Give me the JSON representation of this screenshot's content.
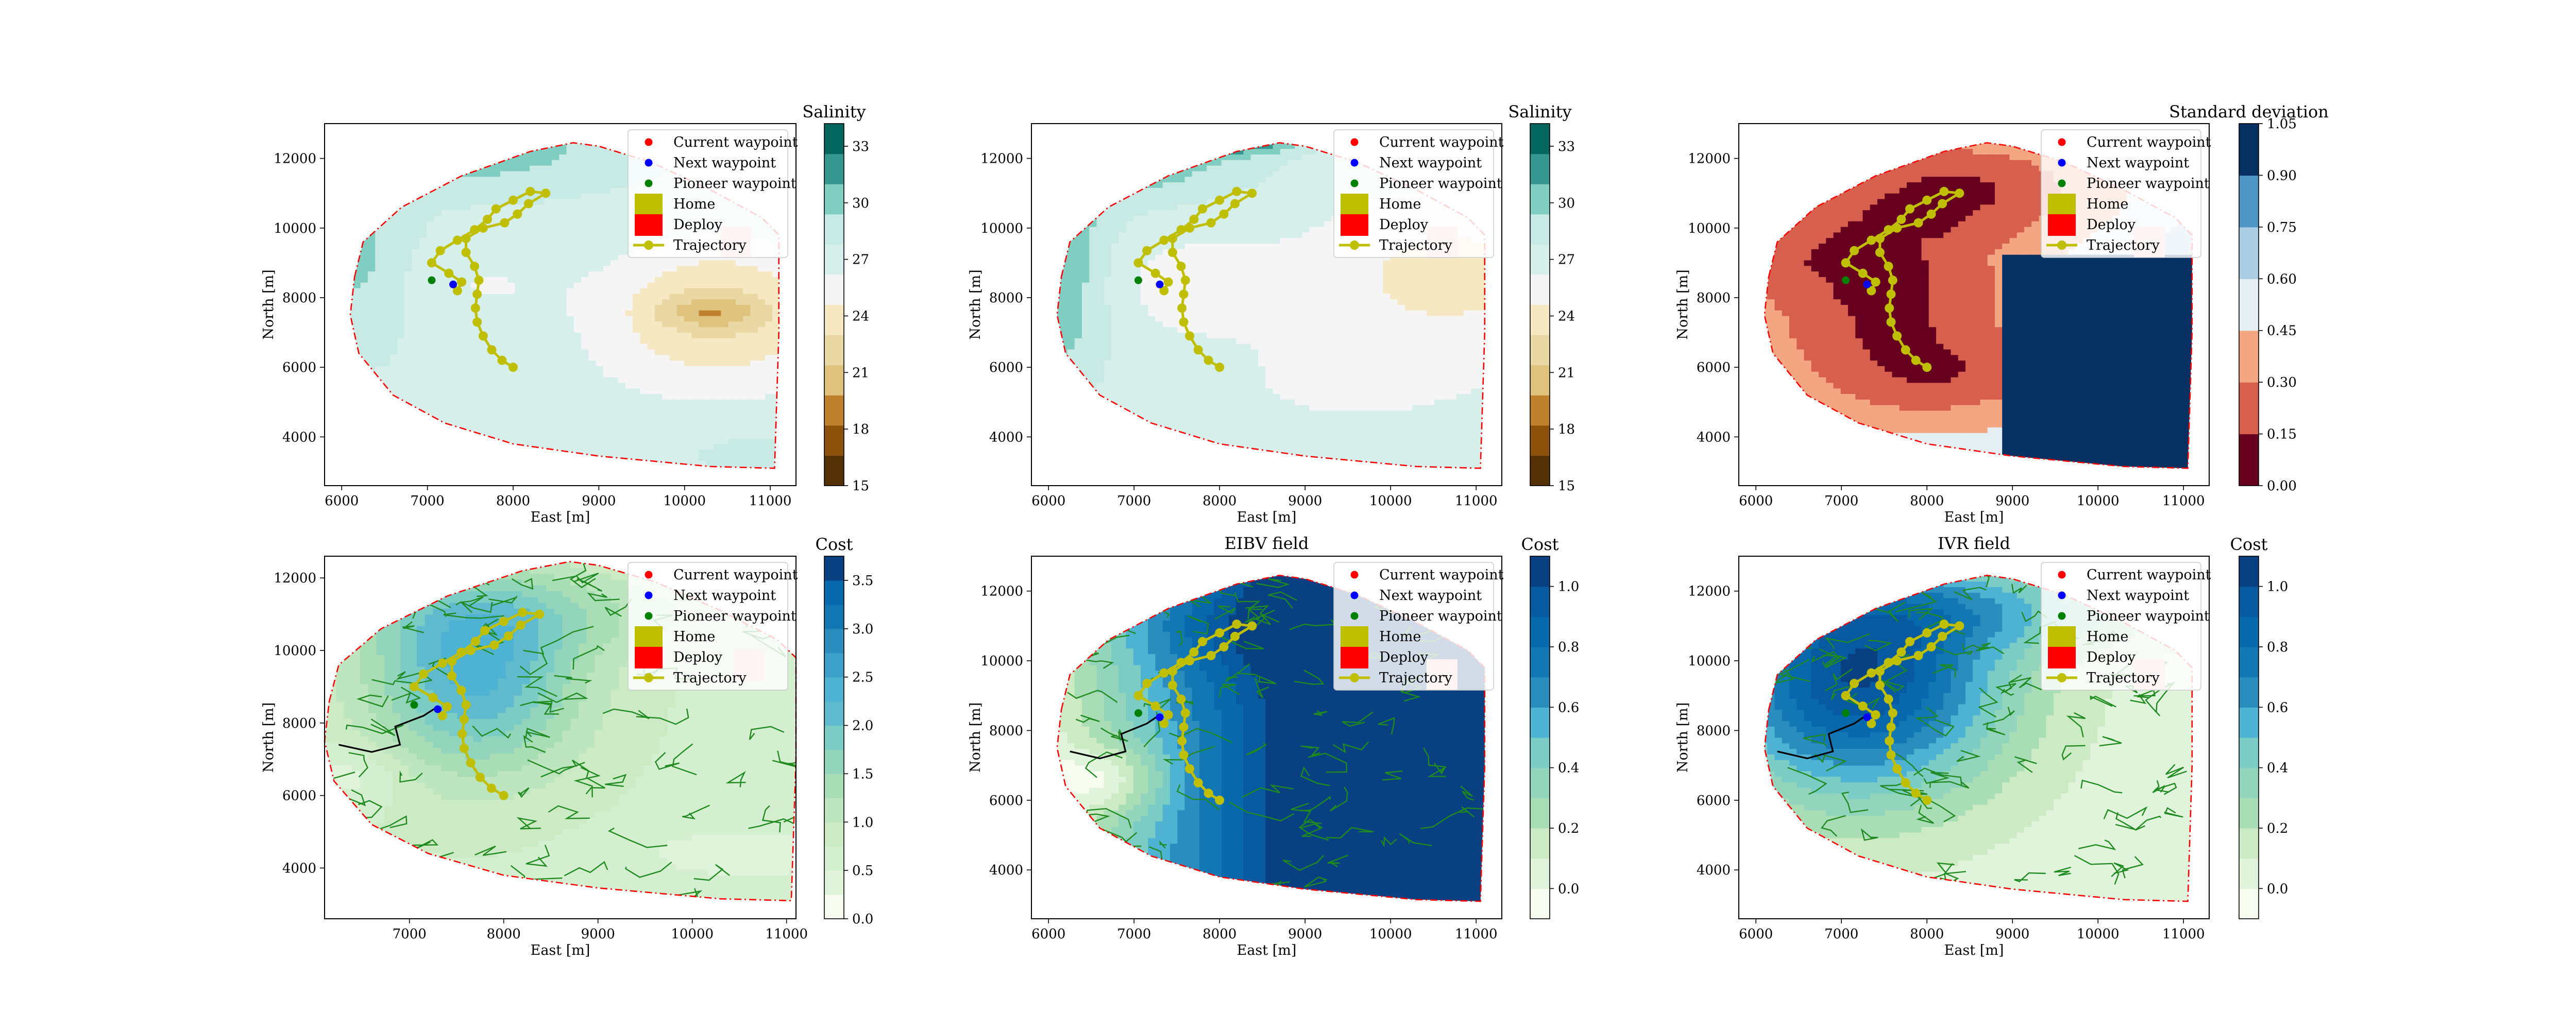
{
  "figure": {
    "panel_titles": [
      "",
      "",
      "",
      "",
      "EIBV field",
      "IVR field"
    ]
  },
  "chart_data": [
    {
      "type": "heatmap",
      "xlabel": "East [m]",
      "ylabel": "North [m]",
      "xlim": [
        5800,
        11300
      ],
      "ylim": [
        2600,
        13000
      ],
      "xticks": [
        6000,
        7000,
        8000,
        9000,
        10000,
        11000
      ],
      "yticks": [
        4000,
        6000,
        8000,
        10000,
        12000
      ],
      "colorbar": {
        "title": "Salinity",
        "ticks": [
          "15",
          "18",
          "21",
          "24",
          "27",
          "30",
          "33"
        ],
        "range": [
          15,
          34.2
        ],
        "levels": [
          15,
          16.6,
          18.2,
          19.8,
          21.4,
          23,
          24.6,
          26.2,
          27.8,
          29.4,
          31,
          32.6,
          34.2
        ],
        "colors": [
          "#543005",
          "#8c510a",
          "#bf812d",
          "#dfc27d",
          "#e9d7a4",
          "#f6e8c3",
          "#f5f5f5",
          "#d6efea",
          "#c7eae5",
          "#80cdc1",
          "#35978f",
          "#01665e",
          "#003c30"
        ]
      },
      "field": "salinity_a",
      "legend": true,
      "veins": false
    },
    {
      "type": "heatmap",
      "xlabel": "East [m]",
      "ylabel": "North [m]",
      "xlim": [
        5800,
        11300
      ],
      "ylim": [
        2600,
        13000
      ],
      "xticks": [
        6000,
        7000,
        8000,
        9000,
        10000,
        11000
      ],
      "yticks": [
        4000,
        6000,
        8000,
        10000,
        12000
      ],
      "colorbar": {
        "title": "Salinity",
        "ticks": [
          "15",
          "18",
          "21",
          "24",
          "27",
          "30",
          "33"
        ],
        "range": [
          15,
          34.2
        ],
        "levels": [
          15,
          16.6,
          18.2,
          19.8,
          21.4,
          23,
          24.6,
          26.2,
          27.8,
          29.4,
          31,
          32.6,
          34.2
        ],
        "colors": [
          "#543005",
          "#8c510a",
          "#bf812d",
          "#dfc27d",
          "#e9d7a4",
          "#f6e8c3",
          "#f5f5f5",
          "#d6efea",
          "#c7eae5",
          "#80cdc1",
          "#35978f",
          "#01665e",
          "#003c30"
        ]
      },
      "field": "salinity_b",
      "legend": true,
      "veins": false
    },
    {
      "type": "heatmap",
      "xlabel": "East [m]",
      "ylabel": "North [m]",
      "xlim": [
        5800,
        11300
      ],
      "ylim": [
        2600,
        13000
      ],
      "xticks": [
        6000,
        7000,
        8000,
        9000,
        10000,
        11000
      ],
      "yticks": [
        4000,
        6000,
        8000,
        10000,
        12000
      ],
      "colorbar": {
        "title": "Standard deviation",
        "ticks": [
          "0.00",
          "0.15",
          "0.30",
          "0.45",
          "0.60",
          "0.75",
          "0.90",
          "1.05"
        ],
        "range": [
          0,
          1.05
        ],
        "levels": [
          0,
          0.15,
          0.3,
          0.45,
          0.6,
          0.75,
          0.9,
          1.05
        ],
        "colors": [
          "#67001f",
          "#d6604d",
          "#f4a582",
          "#e5eef3",
          "#aacde3",
          "#4f96c5",
          "#053061"
        ]
      },
      "field": "std",
      "legend": true,
      "veins": false
    },
    {
      "type": "heatmap",
      "xlabel": "East [m]",
      "ylabel": "North [m]",
      "xlim": [
        6100,
        11100
      ],
      "ylim": [
        2600,
        12600
      ],
      "xticks": [
        7000,
        8000,
        9000,
        10000,
        11000
      ],
      "yticks": [
        4000,
        6000,
        8000,
        10000,
        12000
      ],
      "colorbar": {
        "title": "Cost",
        "ticks": [
          "0.0",
          "0.5",
          "1.0",
          "1.5",
          "2.0",
          "2.5",
          "3.0",
          "3.5"
        ],
        "range": [
          0,
          3.75
        ],
        "levels": [
          0,
          0.25,
          0.5,
          0.75,
          1,
          1.25,
          1.5,
          1.75,
          2,
          2.25,
          2.5,
          2.75,
          3,
          3.25,
          3.5,
          3.75
        ],
        "colors": [
          "#f7fcf0",
          "#e0f3db",
          "#d4efcf",
          "#ccebc5",
          "#bde5bf",
          "#a8ddb5",
          "#93d4bc",
          "#7bccc4",
          "#5fbacd",
          "#4eb3d3",
          "#3ca0c9",
          "#2b8cbe",
          "#1377b4",
          "#0868ac",
          "#084081"
        ]
      },
      "field": "cost",
      "legend": true,
      "veins": true
    },
    {
      "type": "heatmap",
      "xlabel": "East [m]",
      "ylabel": "North [m]",
      "xlim": [
        5800,
        11300
      ],
      "ylim": [
        2600,
        13000
      ],
      "xticks": [
        6000,
        7000,
        8000,
        9000,
        10000,
        11000
      ],
      "yticks": [
        4000,
        6000,
        8000,
        10000,
        12000
      ],
      "colorbar": {
        "title": "Cost",
        "ticks": [
          "0.0",
          "0.2",
          "0.4",
          "0.6",
          "0.8",
          "1.0"
        ],
        "range": [
          -0.1,
          1.1
        ],
        "levels": [
          -0.1,
          0,
          0.1,
          0.2,
          0.3,
          0.4,
          0.5,
          0.6,
          0.7,
          0.8,
          0.9,
          1.0,
          1.1
        ],
        "colors": [
          "#f7fcf0",
          "#e0f3db",
          "#ccebc5",
          "#a8ddb5",
          "#93d4bc",
          "#7bccc4",
          "#4eb3d3",
          "#2b8cbe",
          "#1377b4",
          "#0868ac",
          "#085aa0",
          "#084081"
        ]
      },
      "field": "eibv",
      "legend": true,
      "veins": true
    },
    {
      "type": "heatmap",
      "xlabel": "East [m]",
      "ylabel": "North [m]",
      "xlim": [
        5800,
        11300
      ],
      "ylim": [
        2600,
        13000
      ],
      "xticks": [
        6000,
        7000,
        8000,
        9000,
        10000,
        11000
      ],
      "yticks": [
        4000,
        6000,
        8000,
        10000,
        12000
      ],
      "colorbar": {
        "title": "Cost",
        "ticks": [
          "0.0",
          "0.2",
          "0.4",
          "0.6",
          "0.8",
          "1.0"
        ],
        "range": [
          -0.1,
          1.1
        ],
        "levels": [
          -0.1,
          0,
          0.1,
          0.2,
          0.3,
          0.4,
          0.5,
          0.6,
          0.7,
          0.8,
          0.9,
          1.0,
          1.1
        ],
        "colors": [
          "#f7fcf0",
          "#e0f3db",
          "#ccebc5",
          "#a8ddb5",
          "#93d4bc",
          "#7bccc4",
          "#4eb3d3",
          "#2b8cbe",
          "#1377b4",
          "#0868ac",
          "#085aa0",
          "#084081"
        ]
      },
      "field": "ivr",
      "legend": true,
      "veins": true
    }
  ],
  "legend": {
    "entries": [
      {
        "label": "Current waypoint",
        "marker": "dot",
        "color": "#ff0000"
      },
      {
        "label": "Next waypoint",
        "marker": "dot",
        "color": "#0000ff"
      },
      {
        "label": "Pioneer waypoint",
        "marker": "dot",
        "color": "#008000"
      },
      {
        "label": "Home",
        "marker": "square",
        "color": "#bfbf00"
      },
      {
        "label": "Deploy",
        "marker": "square",
        "color": "#ff0000"
      },
      {
        "label": "Trajectory",
        "marker": "line-dot",
        "color": "#bfbf00"
      }
    ]
  },
  "trajectory": {
    "color": "#bfbf00",
    "points": [
      [
        8000,
        6000
      ],
      [
        7870,
        6200
      ],
      [
        7750,
        6500
      ],
      [
        7650,
        6900
      ],
      [
        7580,
        7300
      ],
      [
        7560,
        7700
      ],
      [
        7580,
        8100
      ],
      [
        7600,
        8500
      ],
      [
        7550,
        8900
      ],
      [
        7450,
        9300
      ],
      [
        7450,
        9700
      ],
      [
        7650,
        10000
      ],
      [
        7900,
        10150
      ],
      [
        8050,
        10400
      ],
      [
        8180,
        10700
      ],
      [
        8380,
        11000
      ],
      [
        8200,
        11050
      ],
      [
        8000,
        10800
      ],
      [
        7800,
        10550
      ],
      [
        7700,
        10250
      ],
      [
        7550,
        9950
      ],
      [
        7350,
        9650
      ],
      [
        7150,
        9350
      ],
      [
        7050,
        9000
      ],
      [
        7250,
        8700
      ],
      [
        7400,
        8450
      ],
      [
        7350,
        8200
      ]
    ]
  },
  "waypoints": {
    "pioneer": [
      7050,
      8500
    ],
    "next": [
      7300,
      8380
    ],
    "home_marker": [
      10600,
      9600
    ]
  },
  "boundary": {
    "color": "#ff0000",
    "polygon": [
      [
        6150,
        8600
      ],
      [
        6250,
        9600
      ],
      [
        6700,
        10600
      ],
      [
        7400,
        11500
      ],
      [
        8200,
        12200
      ],
      [
        8700,
        12450
      ],
      [
        9000,
        12350
      ],
      [
        9600,
        11900
      ],
      [
        10300,
        11100
      ],
      [
        10900,
        10300
      ],
      [
        11100,
        9800
      ],
      [
        11100,
        7000
      ],
      [
        11050,
        3100
      ],
      [
        10300,
        3150
      ],
      [
        9000,
        3450
      ],
      [
        8000,
        3800
      ],
      [
        7200,
        4400
      ],
      [
        6600,
        5200
      ],
      [
        6200,
        6400
      ],
      [
        6100,
        7500
      ]
    ]
  }
}
